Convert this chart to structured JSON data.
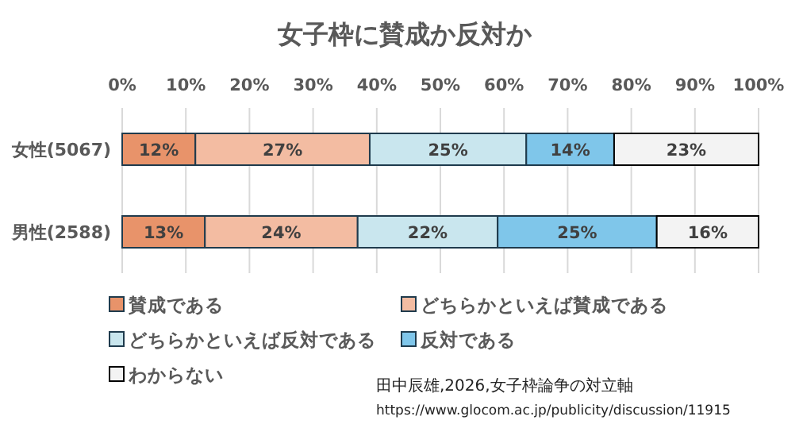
{
  "chart_data": {
    "type": "bar",
    "orientation": "horizontal",
    "stacked": true,
    "title": "女子枠に賛成か反対か",
    "categories": [
      "女性(5067)",
      "男性(2588)"
    ],
    "series": [
      {
        "name": "賛成である",
        "color": "#e8936a",
        "values": [
          11.5,
          13
        ],
        "value_labels": [
          "12%",
          "13%"
        ]
      },
      {
        "name": "どちらかといえば賛成である",
        "color": "#f3bca2",
        "values": [
          27.4,
          24
        ],
        "value_labels": [
          "27%",
          "24%"
        ]
      },
      {
        "name": "どちらかといえば反対である",
        "color": "#c9e6ee",
        "values": [
          24.6,
          22
        ],
        "value_labels": [
          "25%",
          "22%"
        ]
      },
      {
        "name": "反対である",
        "color": "#7fc6ea",
        "values": [
          13.8,
          25
        ],
        "value_labels": [
          "14%",
          "25%"
        ]
      },
      {
        "name": "わからない",
        "color": "#f3f3f3",
        "values": [
          22.7,
          16
        ],
        "value_labels": [
          "23%",
          "16%"
        ]
      }
    ],
    "xlim": [
      0,
      100
    ],
    "xticks": [
      {
        "value": 0,
        "label": "0%"
      },
      {
        "value": 10,
        "label": "10%"
      },
      {
        "value": 20,
        "label": "20%"
      },
      {
        "value": 30,
        "label": "30%"
      },
      {
        "value": 40,
        "label": "40%"
      },
      {
        "value": 50,
        "label": "50%"
      },
      {
        "value": 60,
        "label": "60%"
      },
      {
        "value": 70,
        "label": "70%"
      },
      {
        "value": 80,
        "label": "80%"
      },
      {
        "value": 90,
        "label": "90%"
      },
      {
        "value": 100,
        "label": "100%"
      }
    ],
    "grid": "x",
    "legend": "bottom",
    "annotations": [
      "田中辰雄,2026,女子枠論争の対立軸",
      "https://www.glocom.ac.jp/publicity/discussion/11915"
    ]
  }
}
